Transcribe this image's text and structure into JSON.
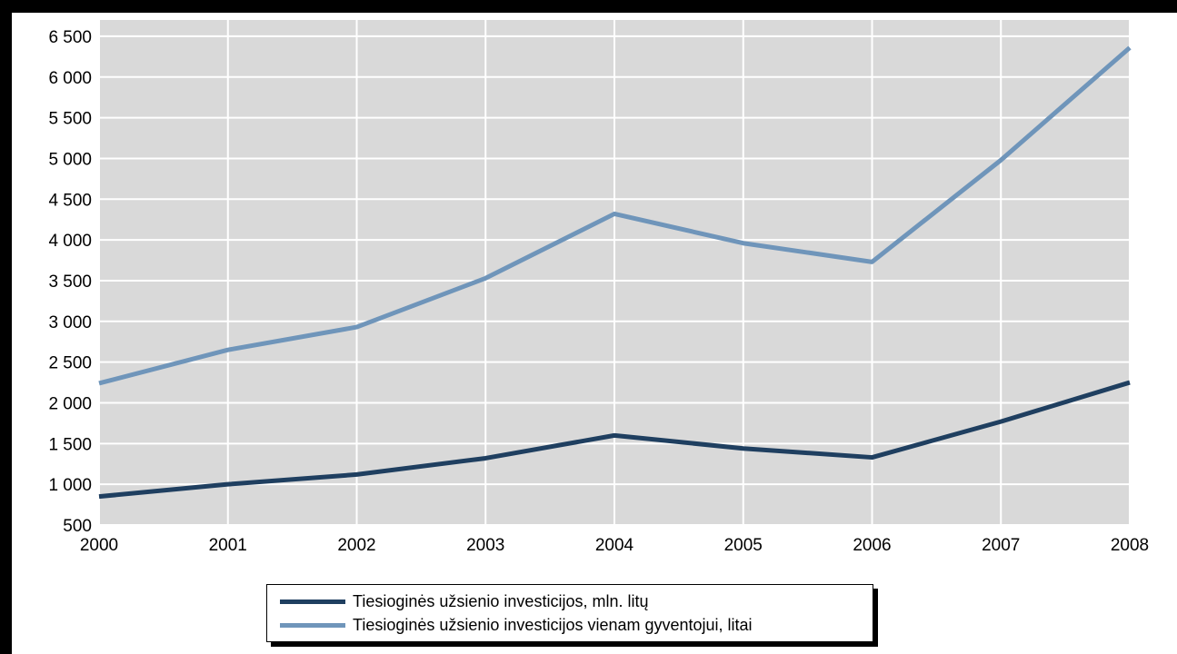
{
  "chart_data": {
    "type": "line",
    "title": "",
    "xlabel": "",
    "ylabel": "",
    "x": [
      "2000",
      "2001",
      "2002",
      "2003",
      "2004",
      "2005",
      "2006",
      "2007",
      "2008"
    ],
    "yticks": [
      500,
      1000,
      1500,
      2000,
      2500,
      3000,
      3500,
      4000,
      4500,
      5000,
      5500,
      6000,
      6500
    ],
    "ytick_labels": [
      "500",
      "1 000",
      "1 500",
      "2 000",
      "2 500",
      "3 000",
      "3 500",
      "4 000",
      "4 500",
      "5 000",
      "5 500",
      "6 000",
      "6 500"
    ],
    "ylim": [
      500,
      6700
    ],
    "grid": true,
    "legend_position": "bottom",
    "series": [
      {
        "name": "Tiesioginės užsienio investicijos, mln. litų",
        "color": "#1f3f60",
        "values": [
          850,
          1000,
          1120,
          1320,
          1600,
          1440,
          1330,
          1770,
          2250
        ]
      },
      {
        "name": "Tiesioginės užsienio investicijos vienam gyventojui, litai",
        "color": "#6f95ba",
        "values": [
          2240,
          2650,
          2930,
          3530,
          4320,
          3960,
          3730,
          4980,
          6360
        ]
      }
    ]
  }
}
